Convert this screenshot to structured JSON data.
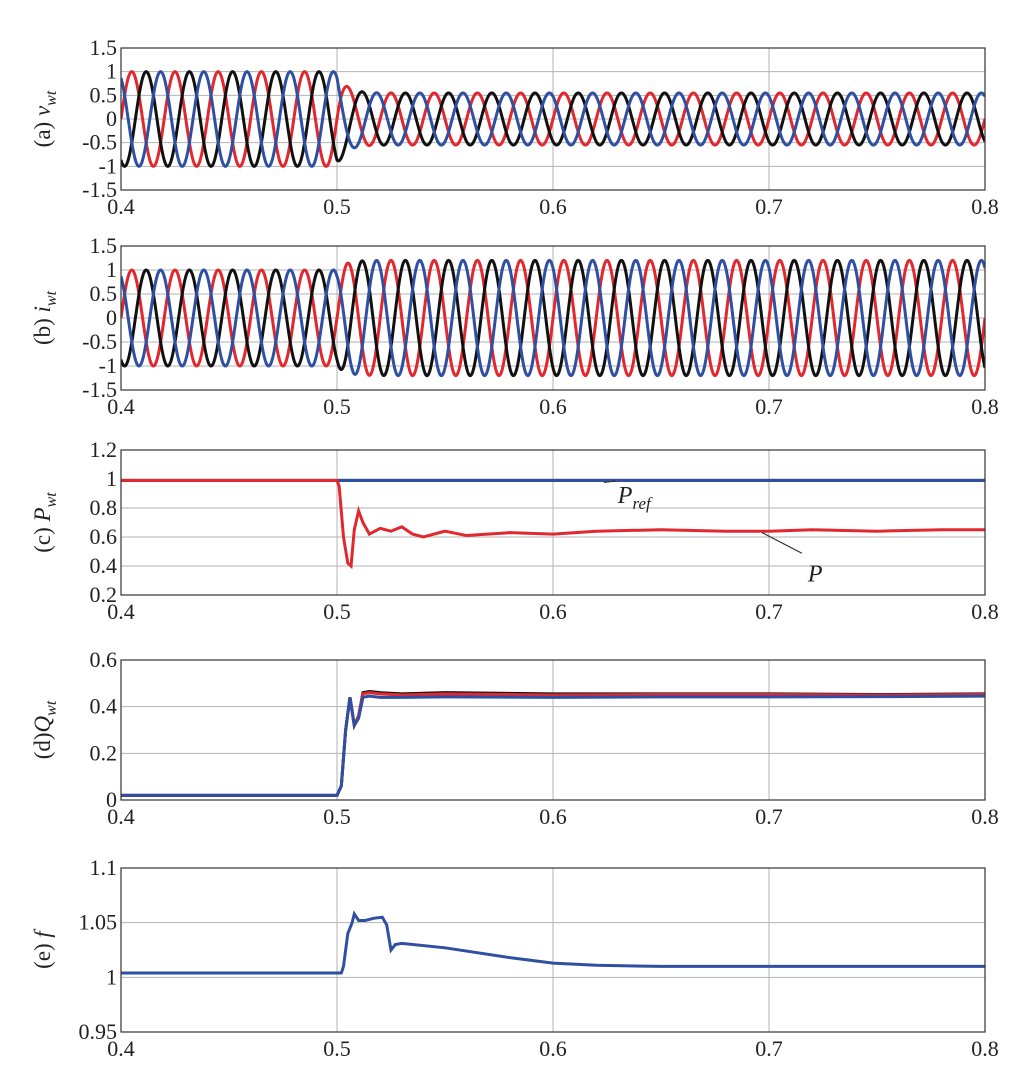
{
  "colors": {
    "blue": "#2F4FA2",
    "red": "#E0282E",
    "black": "#111111",
    "grid": "#B3B3B3",
    "axis": "#333333"
  },
  "chart_data": [
    {
      "type": "line",
      "panel": "a",
      "ylabel": {
        "prefix": "(a) ",
        "main": "v",
        "sub": "wt"
      },
      "xlim": [
        0.4,
        0.8
      ],
      "ylim": [
        -1.5,
        1.5
      ],
      "xticks": [
        "0.4",
        "0.5",
        "0.6",
        "0.7",
        "0.8"
      ],
      "yticks": [
        "-1.5",
        "-1",
        "-0.5",
        "0",
        "0.5",
        "1",
        "1.5"
      ],
      "grid": true,
      "series": [
        {
          "phase": "a",
          "color": "red",
          "pre_amplitude": 1.0,
          "post_amplitude": 0.55
        },
        {
          "phase": "b",
          "color": "black",
          "pre_amplitude": 1.0,
          "post_amplitude": 0.55
        },
        {
          "phase": "c",
          "color": "blue",
          "pre_amplitude": 1.0,
          "post_amplitude": 0.55
        }
      ],
      "signal": {
        "frequency_hz": 50,
        "event_time": 0.5
      }
    },
    {
      "type": "line",
      "panel": "b",
      "ylabel": {
        "prefix": "(b) ",
        "main": "i",
        "sub": "wt"
      },
      "xlim": [
        0.4,
        0.8
      ],
      "ylim": [
        -1.5,
        1.5
      ],
      "xticks": [
        "0.4",
        "0.5",
        "0.6",
        "0.7",
        "0.8"
      ],
      "yticks": [
        "-1.5",
        "-1",
        "-0.5",
        "0",
        "0.5",
        "1",
        "1.5"
      ],
      "grid": true,
      "series": [
        {
          "phase": "a",
          "color": "red",
          "pre_amplitude": 1.0,
          "post_amplitude": 1.2
        },
        {
          "phase": "b",
          "color": "black",
          "pre_amplitude": 1.0,
          "post_amplitude": 1.2
        },
        {
          "phase": "c",
          "color": "blue",
          "pre_amplitude": 1.0,
          "post_amplitude": 1.2
        }
      ],
      "signal": {
        "frequency_hz": 50,
        "event_time": 0.5
      }
    },
    {
      "type": "line",
      "panel": "c",
      "ylabel": {
        "prefix": "(c) ",
        "main": "P",
        "sub": "wt"
      },
      "xlim": [
        0.4,
        0.8
      ],
      "ylim": [
        0.2,
        1.2
      ],
      "xticks": [
        "0.4",
        "0.5",
        "0.6",
        "0.7",
        "0.8"
      ],
      "yticks": [
        "0.2",
        "0.4",
        "0.6",
        "0.8",
        "1",
        "1.2"
      ],
      "grid": true,
      "series": [
        {
          "name": "P_ref",
          "color": "blue",
          "x": [
            0.4,
            0.8
          ],
          "y": [
            0.99,
            0.99
          ]
        },
        {
          "name": "P",
          "color": "red",
          "x": [
            0.4,
            0.5,
            0.501,
            0.503,
            0.505,
            0.5065,
            0.508,
            0.51,
            0.512,
            0.515,
            0.52,
            0.525,
            0.53,
            0.535,
            0.54,
            0.55,
            0.56,
            0.58,
            0.6,
            0.62,
            0.65,
            0.68,
            0.7,
            0.72,
            0.75,
            0.78,
            0.8
          ],
          "y": [
            0.99,
            0.99,
            0.95,
            0.6,
            0.42,
            0.4,
            0.65,
            0.78,
            0.7,
            0.62,
            0.66,
            0.64,
            0.67,
            0.62,
            0.6,
            0.64,
            0.61,
            0.63,
            0.62,
            0.64,
            0.65,
            0.64,
            0.64,
            0.65,
            0.64,
            0.65,
            0.65
          ]
        }
      ],
      "annotations": [
        {
          "text": "ref",
          "main": "P",
          "x": 0.63,
          "y": 0.89
        },
        {
          "text": "P",
          "x": 0.718,
          "y": 0.35
        }
      ]
    },
    {
      "type": "line",
      "panel": "d",
      "ylabel": {
        "prefix": "(d)",
        "main": "Q",
        "sub": "wt"
      },
      "xlim": [
        0.4,
        0.8
      ],
      "ylim": [
        0,
        0.6
      ],
      "xticks": [
        "0.4",
        "0.5",
        "0.6",
        "0.7",
        "0.8"
      ],
      "yticks": [
        "0",
        "0.2",
        "0.4",
        "0.6"
      ],
      "grid": true,
      "series": [
        {
          "color": "black",
          "x": [
            0.4,
            0.5,
            0.502,
            0.504,
            0.506,
            0.508,
            0.51,
            0.512,
            0.515,
            0.52,
            0.53,
            0.55,
            0.6,
            0.65,
            0.7,
            0.75,
            0.8
          ],
          "y": [
            0.02,
            0.02,
            0.06,
            0.3,
            0.44,
            0.32,
            0.36,
            0.46,
            0.465,
            0.46,
            0.455,
            0.46,
            0.455,
            0.455,
            0.455,
            0.452,
            0.455
          ]
        },
        {
          "color": "red",
          "x": [
            0.4,
            0.5,
            0.502,
            0.504,
            0.506,
            0.508,
            0.51,
            0.512,
            0.515,
            0.52,
            0.53,
            0.55,
            0.6,
            0.65,
            0.7,
            0.75,
            0.8
          ],
          "y": [
            0.02,
            0.02,
            0.06,
            0.3,
            0.44,
            0.32,
            0.36,
            0.455,
            0.46,
            0.455,
            0.45,
            0.455,
            0.45,
            0.452,
            0.452,
            0.45,
            0.452
          ]
        },
        {
          "color": "blue",
          "x": [
            0.4,
            0.5,
            0.502,
            0.504,
            0.506,
            0.508,
            0.51,
            0.512,
            0.515,
            0.52,
            0.53,
            0.55,
            0.6,
            0.65,
            0.7,
            0.75,
            0.8
          ],
          "y": [
            0.02,
            0.02,
            0.06,
            0.3,
            0.44,
            0.32,
            0.35,
            0.44,
            0.445,
            0.44,
            0.44,
            0.442,
            0.44,
            0.442,
            0.442,
            0.443,
            0.445
          ]
        }
      ]
    },
    {
      "type": "line",
      "panel": "e",
      "ylabel": {
        "prefix": "(e) ",
        "main": "f",
        "sub": ""
      },
      "xlim": [
        0.4,
        0.8
      ],
      "ylim": [
        0.95,
        1.1
      ],
      "xticks": [
        "0.4",
        "0.5",
        "0.6",
        "0.7",
        "0.8"
      ],
      "yticks": [
        "0.95",
        "1",
        "1.05",
        "1.1"
      ],
      "grid": true,
      "series": [
        {
          "color": "blue",
          "x": [
            0.4,
            0.502,
            0.503,
            0.505,
            0.507,
            0.508,
            0.51,
            0.513,
            0.517,
            0.521,
            0.523,
            0.525,
            0.527,
            0.53,
            0.55,
            0.58,
            0.6,
            0.62,
            0.65,
            0.7,
            0.75,
            0.8
          ],
          "y": [
            1.004,
            1.004,
            1.01,
            1.04,
            1.05,
            1.058,
            1.052,
            1.052,
            1.054,
            1.055,
            1.048,
            1.025,
            1.03,
            1.031,
            1.027,
            1.018,
            1.013,
            1.011,
            1.01,
            1.01,
            1.01,
            1.01
          ]
        }
      ]
    }
  ]
}
